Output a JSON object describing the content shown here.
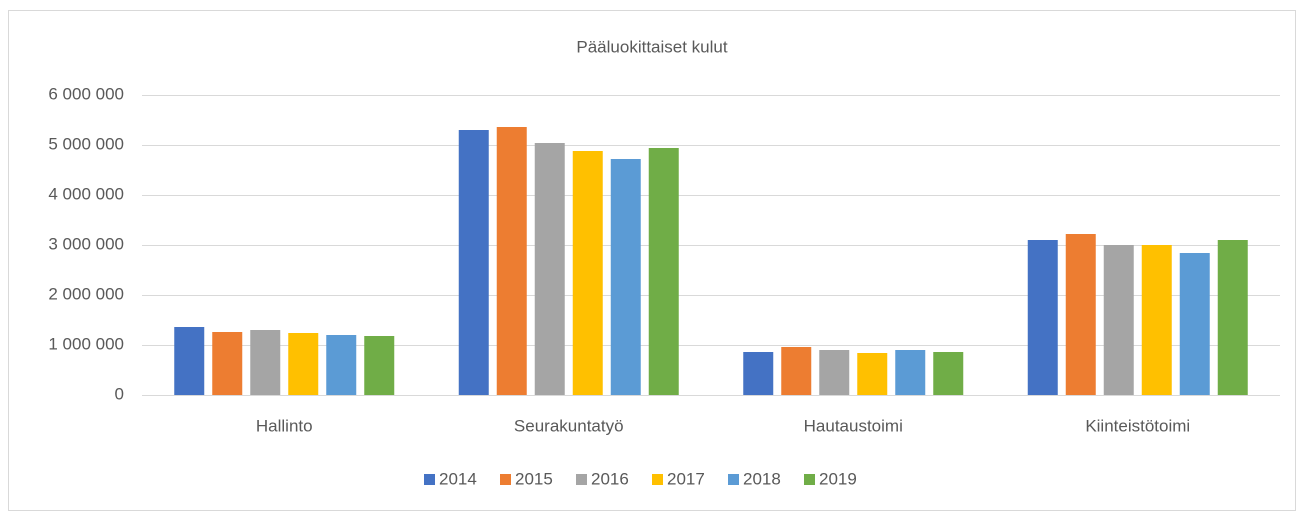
{
  "chart_data": {
    "type": "bar",
    "title": "Pääluokittaiset kulut",
    "categories": [
      "Hallinto",
      "Seurakuntatyö",
      "Hautaustoimi",
      "Kiinteistötoimi"
    ],
    "series": [
      {
        "name": "2014",
        "color": "#4472c4",
        "values": [
          1360000,
          5300000,
          860000,
          3100000
        ]
      },
      {
        "name": "2015",
        "color": "#ed7d31",
        "values": [
          1260000,
          5360000,
          960000,
          3220000
        ]
      },
      {
        "name": "2016",
        "color": "#a5a5a5",
        "values": [
          1300000,
          5040000,
          900000,
          3000000
        ]
      },
      {
        "name": "2017",
        "color": "#ffc000",
        "values": [
          1240000,
          4880000,
          840000,
          3000000
        ]
      },
      {
        "name": "2018",
        "color": "#5b9bd5",
        "values": [
          1200000,
          4720000,
          900000,
          2840000
        ]
      },
      {
        "name": "2019",
        "color": "#70ad47",
        "values": [
          1180000,
          4940000,
          860000,
          3100000
        ]
      }
    ],
    "ylim": [
      0,
      6000000
    ],
    "yticks": [
      0,
      {
        "value": 1000000,
        "label": "1 000 000"
      },
      {
        "value": 2000000,
        "label": "2 000 000"
      },
      {
        "value": 3000000,
        "label": "3 000 000"
      },
      {
        "value": 4000000,
        "label": "4 000 000"
      },
      {
        "value": 5000000,
        "label": "5 000 000"
      },
      {
        "value": 6000000,
        "label": "6 000 000"
      }
    ],
    "grid": true,
    "legend": "bottom"
  }
}
